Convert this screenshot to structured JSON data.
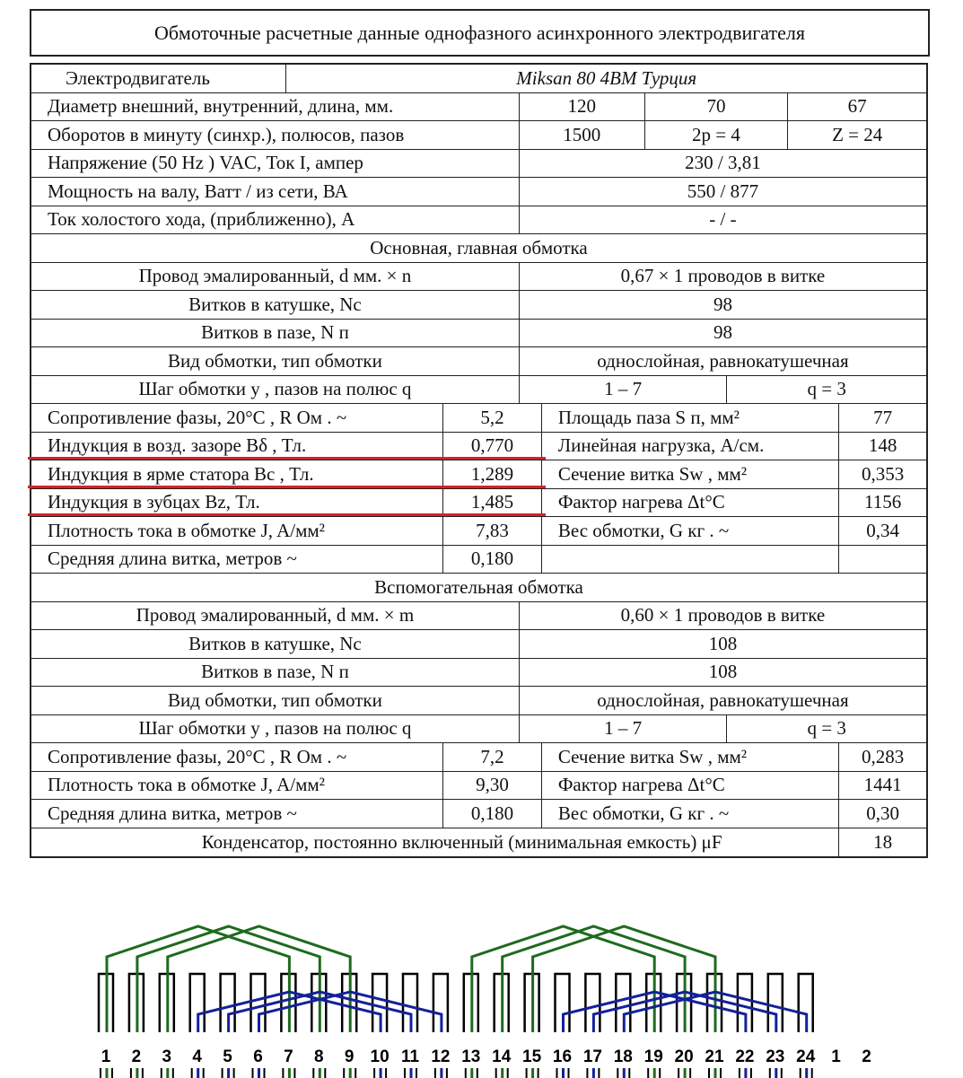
{
  "title": "Обмоточные расчетные данные однофазного асинхронного электродвигателя",
  "rows": [
    [
      "Электродвигатель",
      "Miksan 80 4BM Турция"
    ],
    [
      "Диаметр внешний, внутренний, длина, мм.",
      "120",
      "70",
      "67"
    ],
    [
      "Оборотов в минуту (синхр.), полюсов, пазов",
      "1500",
      "2p   =     4",
      "Z   =   24"
    ],
    [
      "Напряжение (50 Hz ) VAC, Ток I, ампер",
      "230  /  3,81"
    ],
    [
      "Мощность на валу, Ватт  / из сети, ВА",
      "550  /  877"
    ],
    [
      "Ток холостого хода, (приближенно), A",
      "-  /  -"
    ],
    [
      "Основная, главная обмотка"
    ],
    [
      "Провод эмалированный, d мм.  × n",
      "0,67     ×     1   проводов в витке"
    ],
    [
      "Витков в катушке, Nc",
      "98"
    ],
    [
      "Витков в пазе, N п",
      "98"
    ],
    [
      "Вид обмотки, тип обмотки",
      "однослойная, равнокатушечная"
    ],
    [
      "Шаг обмотки y , пазов на полюс q",
      "1    –     7",
      "q    =    3"
    ],
    [
      "Сопротивление фазы, 20°C , R Ом . ~",
      "5,2",
      "Площадь паза S п, мм²",
      "77"
    ],
    [
      "Индукция в возд. зазоре Bδ , Тл.",
      "0,770",
      "Линейная нагрузка, A/см.",
      "148"
    ],
    [
      "Индукция в ярме статора Bc , Тл.",
      "1,289",
      "Сечение витка Sw , мм²",
      "0,353"
    ],
    [
      "Индукция в зубцах Bz, Тл.",
      "1,485",
      "Фактор нагрева Δt°C",
      "1156"
    ],
    [
      "Плотность тока в обмотке J, A/мм²",
      "7,83",
      "Вес обмотки, G  кг .       ~",
      "0,34"
    ],
    [
      "Средняя длина витка, метров        ~",
      "0,180",
      "",
      ""
    ],
    [
      "Вспомогательная обмотка"
    ],
    [
      "Провод эмалированный, d мм.  × m",
      "0,60     ×     1   проводов в витке"
    ],
    [
      "Витков в катушке, Nc",
      "108"
    ],
    [
      "Витков в пазе, N п",
      "108"
    ],
    [
      "Вид обмотки, тип обмотки",
      "однослойная, равнокатушечная"
    ],
    [
      "Шаг обмотки y , пазов на полюс q",
      "1    –     7",
      "q    =    3"
    ],
    [
      "Сопротивление фазы, 20°C , R Ом . ~",
      "7,2",
      "Сечение витка Sw , мм²",
      "0,283"
    ],
    [
      "Плотность тока в обмотке J, A/мм²",
      "9,30",
      "Фактор нагрева Δt°C",
      "1441"
    ],
    [
      "Средняя длина витка, метров        ~",
      "0,180",
      "Вес обмотки, G  кг .       ~",
      "0,30"
    ],
    [
      "Конденсатор, постоянно включенный (минимальная емкость)          μF",
      "18"
    ]
  ],
  "highlighted_rows": [
    "Индукция в возд. зазоре Bδ , Тл.",
    "Индукция в ярме статора Bc , Тл.",
    "Индукция в зубцах Bz, Тл."
  ],
  "highlight_color": "#d2232a",
  "diagram": {
    "slot_labels": [
      "1",
      "2",
      "3",
      "4",
      "5",
      "6",
      "7",
      "8",
      "9",
      "10",
      "11",
      "12",
      "13",
      "14",
      "15",
      "16",
      "17",
      "18",
      "19",
      "20",
      "21",
      "22",
      "23",
      "24",
      "1",
      "2"
    ],
    "slot_count": 24,
    "main_color": "#1e6b1e",
    "aux_color": "#14219a",
    "main_coils": [
      [
        1,
        7
      ],
      [
        2,
        8
      ],
      [
        3,
        9
      ],
      [
        13,
        19
      ],
      [
        14,
        20
      ],
      [
        15,
        21
      ]
    ],
    "aux_coils": [
      [
        4,
        10
      ],
      [
        5,
        11
      ],
      [
        6,
        12
      ],
      [
        16,
        22
      ],
      [
        17,
        23
      ],
      [
        18,
        24
      ]
    ]
  }
}
